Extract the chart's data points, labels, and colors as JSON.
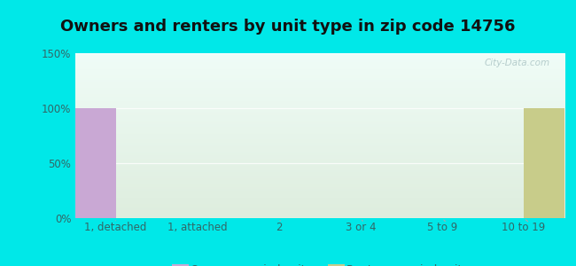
{
  "title": "Owners and renters by unit type in zip code 14756",
  "categories": [
    "1, detached",
    "1, attached",
    "2",
    "3 or 4",
    "5 to 9",
    "10 to 19"
  ],
  "owner_values": [
    100,
    0,
    0,
    0,
    0,
    0
  ],
  "renter_values": [
    0,
    0,
    0,
    0,
    0,
    100
  ],
  "owner_color": "#c9a8d4",
  "renter_color": "#c8cc8a",
  "ylim": [
    0,
    150
  ],
  "yticks": [
    0,
    50,
    100,
    150
  ],
  "ytick_labels": [
    "0%",
    "50%",
    "100%",
    "150%"
  ],
  "bar_width": 0.5,
  "background_color": "#00e8e8",
  "plot_bg_top_left": "#f0faf8",
  "plot_bg_bottom_right": "#deeedd",
  "title_fontsize": 13,
  "tick_fontsize": 8.5,
  "legend_fontsize": 9,
  "watermark": "City-Data.com",
  "label_color": "#336666"
}
